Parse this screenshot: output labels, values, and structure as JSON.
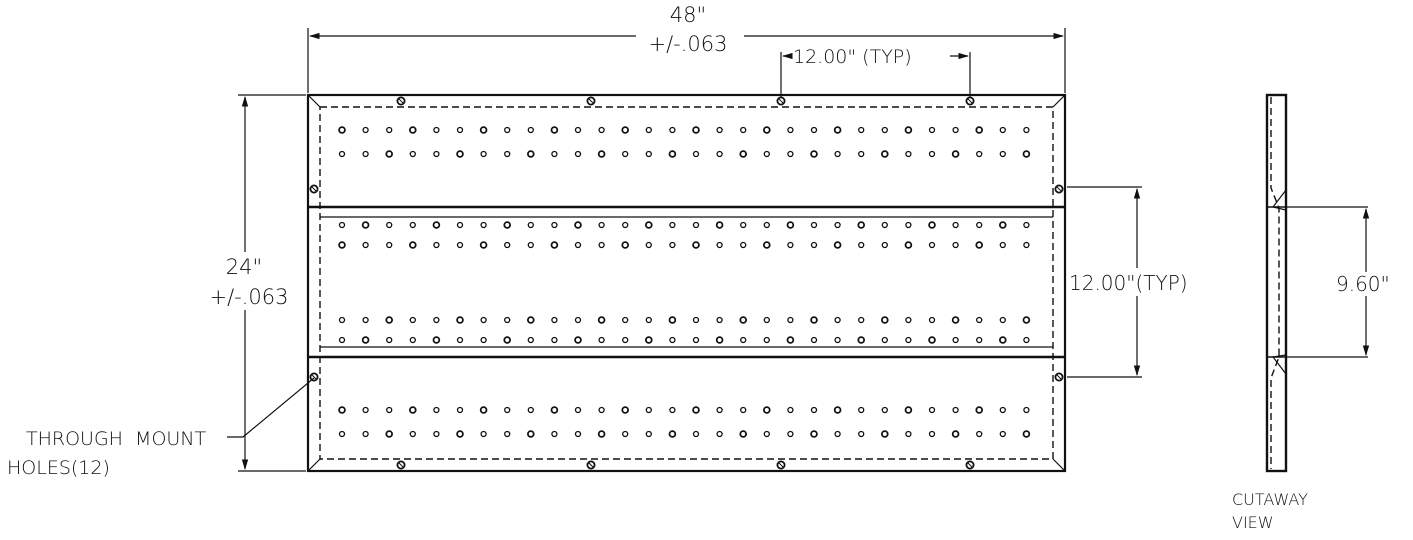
{
  "dimensions": {
    "width": "48\"",
    "width_tol": "+/-.063",
    "spacing_top": "12.00\" (TYP)",
    "height": "24\"",
    "height_tol": "+/-.063",
    "spacing_right": "12.00\"(TYP)",
    "cutaway_dim": "9.60\""
  },
  "labels": {
    "through_line1": "THROUGH  MOUNT",
    "through_line2": "HOLES(12)",
    "cutaway_line1": "CUTAWAY",
    "cutaway_line2": "VIEW"
  },
  "diagram": {
    "mount_holes": 12,
    "hole_columns": 30,
    "hole_rows": 8
  }
}
